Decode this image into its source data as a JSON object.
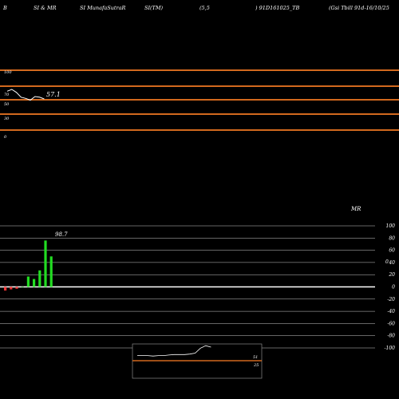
{
  "header": {
    "items": [
      "B",
      "SI & MR",
      "SI MunafaSutraR",
      "SI(TM)",
      "(5,5",
      ") 91D161025_TB",
      "(Gsi  Tbill 91d-16/10/25"
    ]
  },
  "colors": {
    "background": "#000000",
    "line_orange": "#d2691e",
    "rsi_line": "#ffffff",
    "bar_green": "#22dd22",
    "bar_red": "#ee3333",
    "zero_line": "#ffffff",
    "grid": "#ffffff"
  },
  "chart_data": [
    {
      "type": "line",
      "title": "",
      "y_ticks": [
        "100",
        "70",
        "50",
        "30",
        "0"
      ],
      "ylim": [
        0,
        100
      ],
      "value_label": "57.1",
      "series": [
        {
          "x": [
            1,
            2,
            3,
            4,
            5,
            6,
            7,
            8,
            9
          ],
          "values": [
            65,
            68,
            63,
            55,
            53,
            50,
            56,
            55,
            52
          ]
        }
      ],
      "orange_levels": [
        100,
        70,
        50,
        30
      ]
    },
    {
      "type": "bar",
      "title": "MR",
      "y_ticks": [
        "100",
        "80",
        "60",
        "40",
        "20",
        "0",
        "-20",
        "-40",
        "-60",
        "-80",
        "-100"
      ],
      "y_ticks_inner": [
        "0"
      ],
      "ylim": [
        -100,
        100
      ],
      "value_label": "98.7",
      "values": [
        -6,
        -4,
        -3,
        0,
        17,
        13,
        27,
        76,
        50
      ]
    },
    {
      "type": "line",
      "title": "",
      "right_labels": [
        "51",
        "25"
      ],
      "series": [
        {
          "x": [
            1,
            2,
            3,
            4,
            5,
            6,
            7,
            8,
            9,
            10,
            11,
            12,
            13,
            14,
            15
          ],
          "values": [
            12,
            12,
            12,
            11,
            12,
            12,
            13,
            14,
            14,
            14,
            15,
            17,
            27,
            32,
            29
          ]
        }
      ]
    }
  ]
}
